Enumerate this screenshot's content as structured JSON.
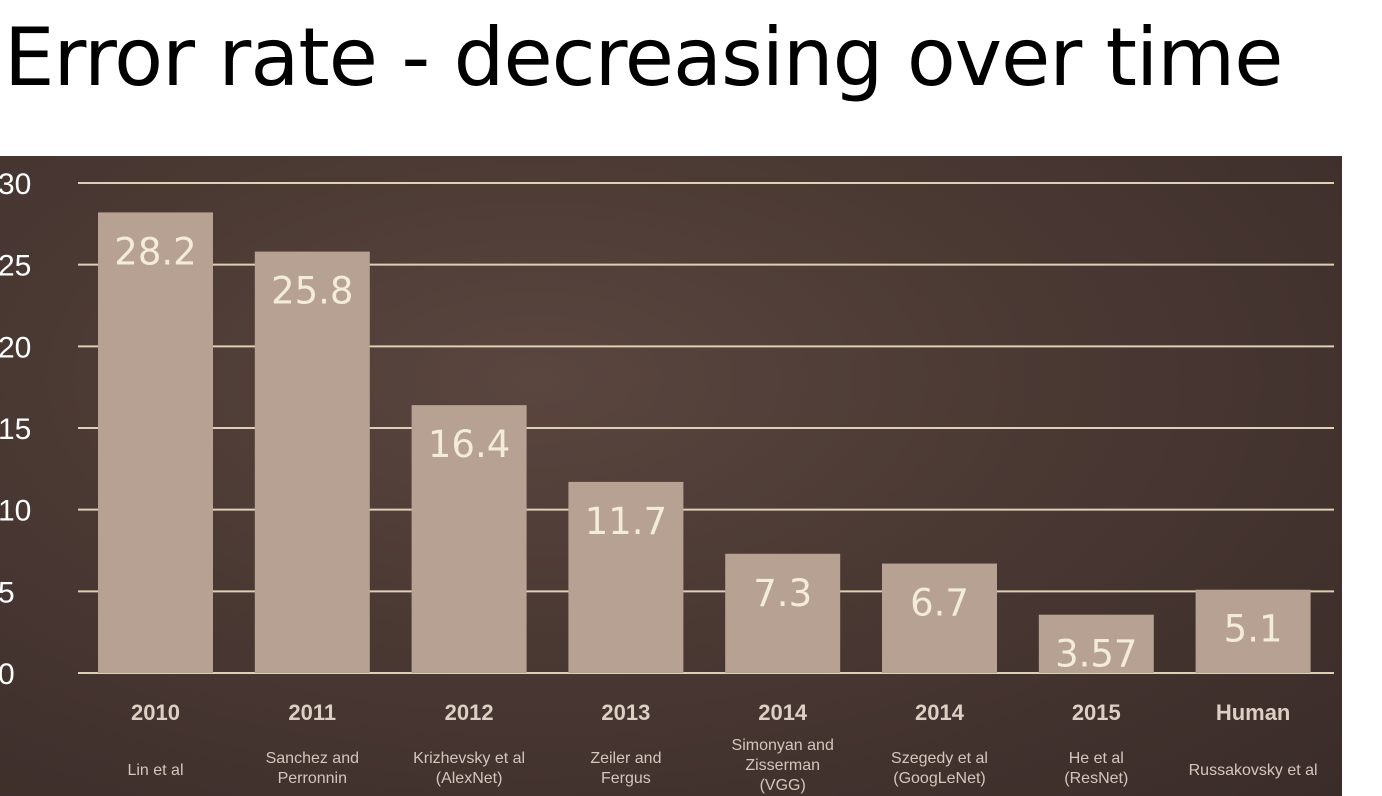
{
  "title": "Error rate - decreasing over time",
  "colors": {
    "bar": "#b7a193",
    "gridline": "#ddd0b6",
    "panel": "#4a3833",
    "value_text": "#f3ecd6"
  },
  "chart_data": {
    "type": "bar",
    "title": "Error rate - decreasing over time",
    "categories": [
      "2010",
      "2011",
      "2012",
      "2013",
      "2014",
      "2014",
      "2015",
      "Human"
    ],
    "subcategories": [
      [
        "Lin et al"
      ],
      [
        "Sanchez and",
        "Perronnin"
      ],
      [
        "Krizhevsky et al",
        "(AlexNet)"
      ],
      [
        "Zeiler and",
        "Fergus"
      ],
      [
        "Simonyan and",
        "Zisserman",
        "(VGG)"
      ],
      [
        "Szegedy et al",
        "(GoogLeNet)"
      ],
      [
        "He et al",
        "(ResNet)"
      ],
      [
        "Russakovsky et al"
      ]
    ],
    "values": [
      28.2,
      25.8,
      16.4,
      11.7,
      7.3,
      6.7,
      3.57,
      5.1
    ],
    "data_labels": [
      "28.2",
      "25.8",
      "16.4",
      "11.7",
      "7.3",
      "6.7",
      "3.57",
      "5.1"
    ],
    "yticks": [
      "0",
      "5",
      "10",
      "15",
      "20",
      "25",
      "30"
    ],
    "ylim": [
      0,
      30
    ],
    "xlabel": "",
    "ylabel": "",
    "grid": true,
    "legend": "none"
  }
}
